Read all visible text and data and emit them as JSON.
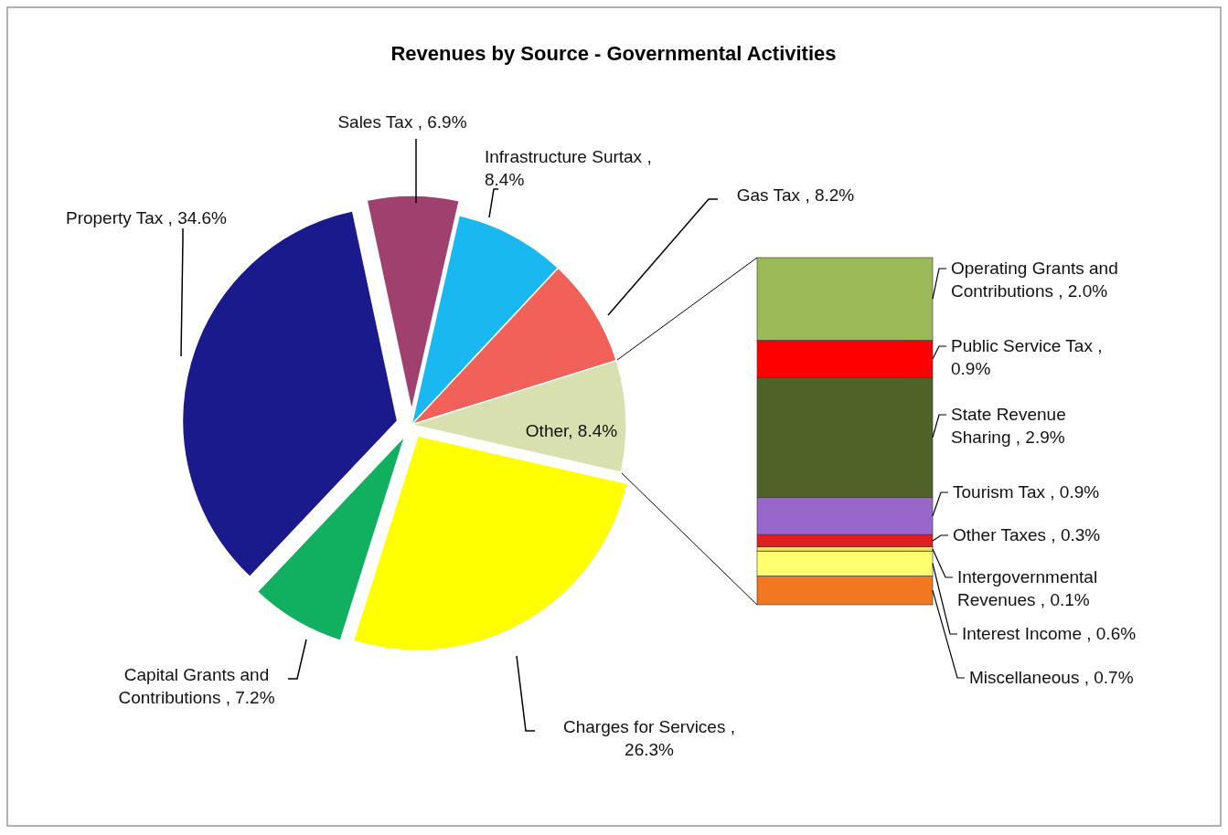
{
  "chart_data": [
    {
      "type": "pie",
      "title": "Revenues by Source - Governmental Activities",
      "categories": [
        "Sales Tax , 6.9%",
        "Infrastructure Surtax , 8.4%",
        "Gas Tax , 8.2%",
        "Other, 8.4%",
        "Charges for Services , 26.3%",
        "Capital Grants and Contributions , 7.2%",
        "Property Tax , 34.6%"
      ],
      "values": [
        6.9,
        8.4,
        8.2,
        8.4,
        26.3,
        7.2,
        34.6
      ],
      "colors": [
        "#a0406e",
        "#1ab8f0",
        "#f2605a",
        "#d8e0b0",
        "#ffff00",
        "#10b060",
        "#1a1a8c"
      ]
    },
    {
      "type": "bar",
      "stacked": true,
      "categories": [
        null
      ],
      "series": [
        {
          "name": "Miscellaneous ,",
          "color": "#f07820",
          "values": [
            0.7
          ],
          "value_labels": [
            "0.7%"
          ]
        },
        {
          "name": "Interest Income ,",
          "color": "#ffff70",
          "values": [
            0.6
          ],
          "value_labels": [
            "0.6%"
          ]
        },
        {
          "name": "Intergovernmental Revenues ,",
          "color": "#f0e060",
          "values": [
            0.1
          ],
          "value_labels": [
            "0.1%"
          ]
        },
        {
          "name": "Other Taxes ,",
          "color": "#e02020",
          "values": [
            0.3
          ],
          "value_labels": [
            "0.3%"
          ]
        },
        {
          "name": "Tourism Tax ,",
          "color": "#9966cc",
          "values": [
            0.9
          ],
          "value_labels": [
            "0.9%"
          ]
        },
        {
          "name": "State Revenue Sharing ,",
          "color": "#4f6228",
          "values": [
            2.9
          ],
          "value_labels": [
            "2.9%"
          ]
        },
        {
          "name": "Public Service Tax ,",
          "color": "#ff0000",
          "values": [
            0.9
          ],
          "value_labels": [
            "0.9%"
          ]
        },
        {
          "name": "Operating Grants and Contributions ,",
          "color": "#9cbb58",
          "values": [
            2.0
          ],
          "value_labels": [
            "2.0%"
          ]
        }
      ]
    }
  ]
}
